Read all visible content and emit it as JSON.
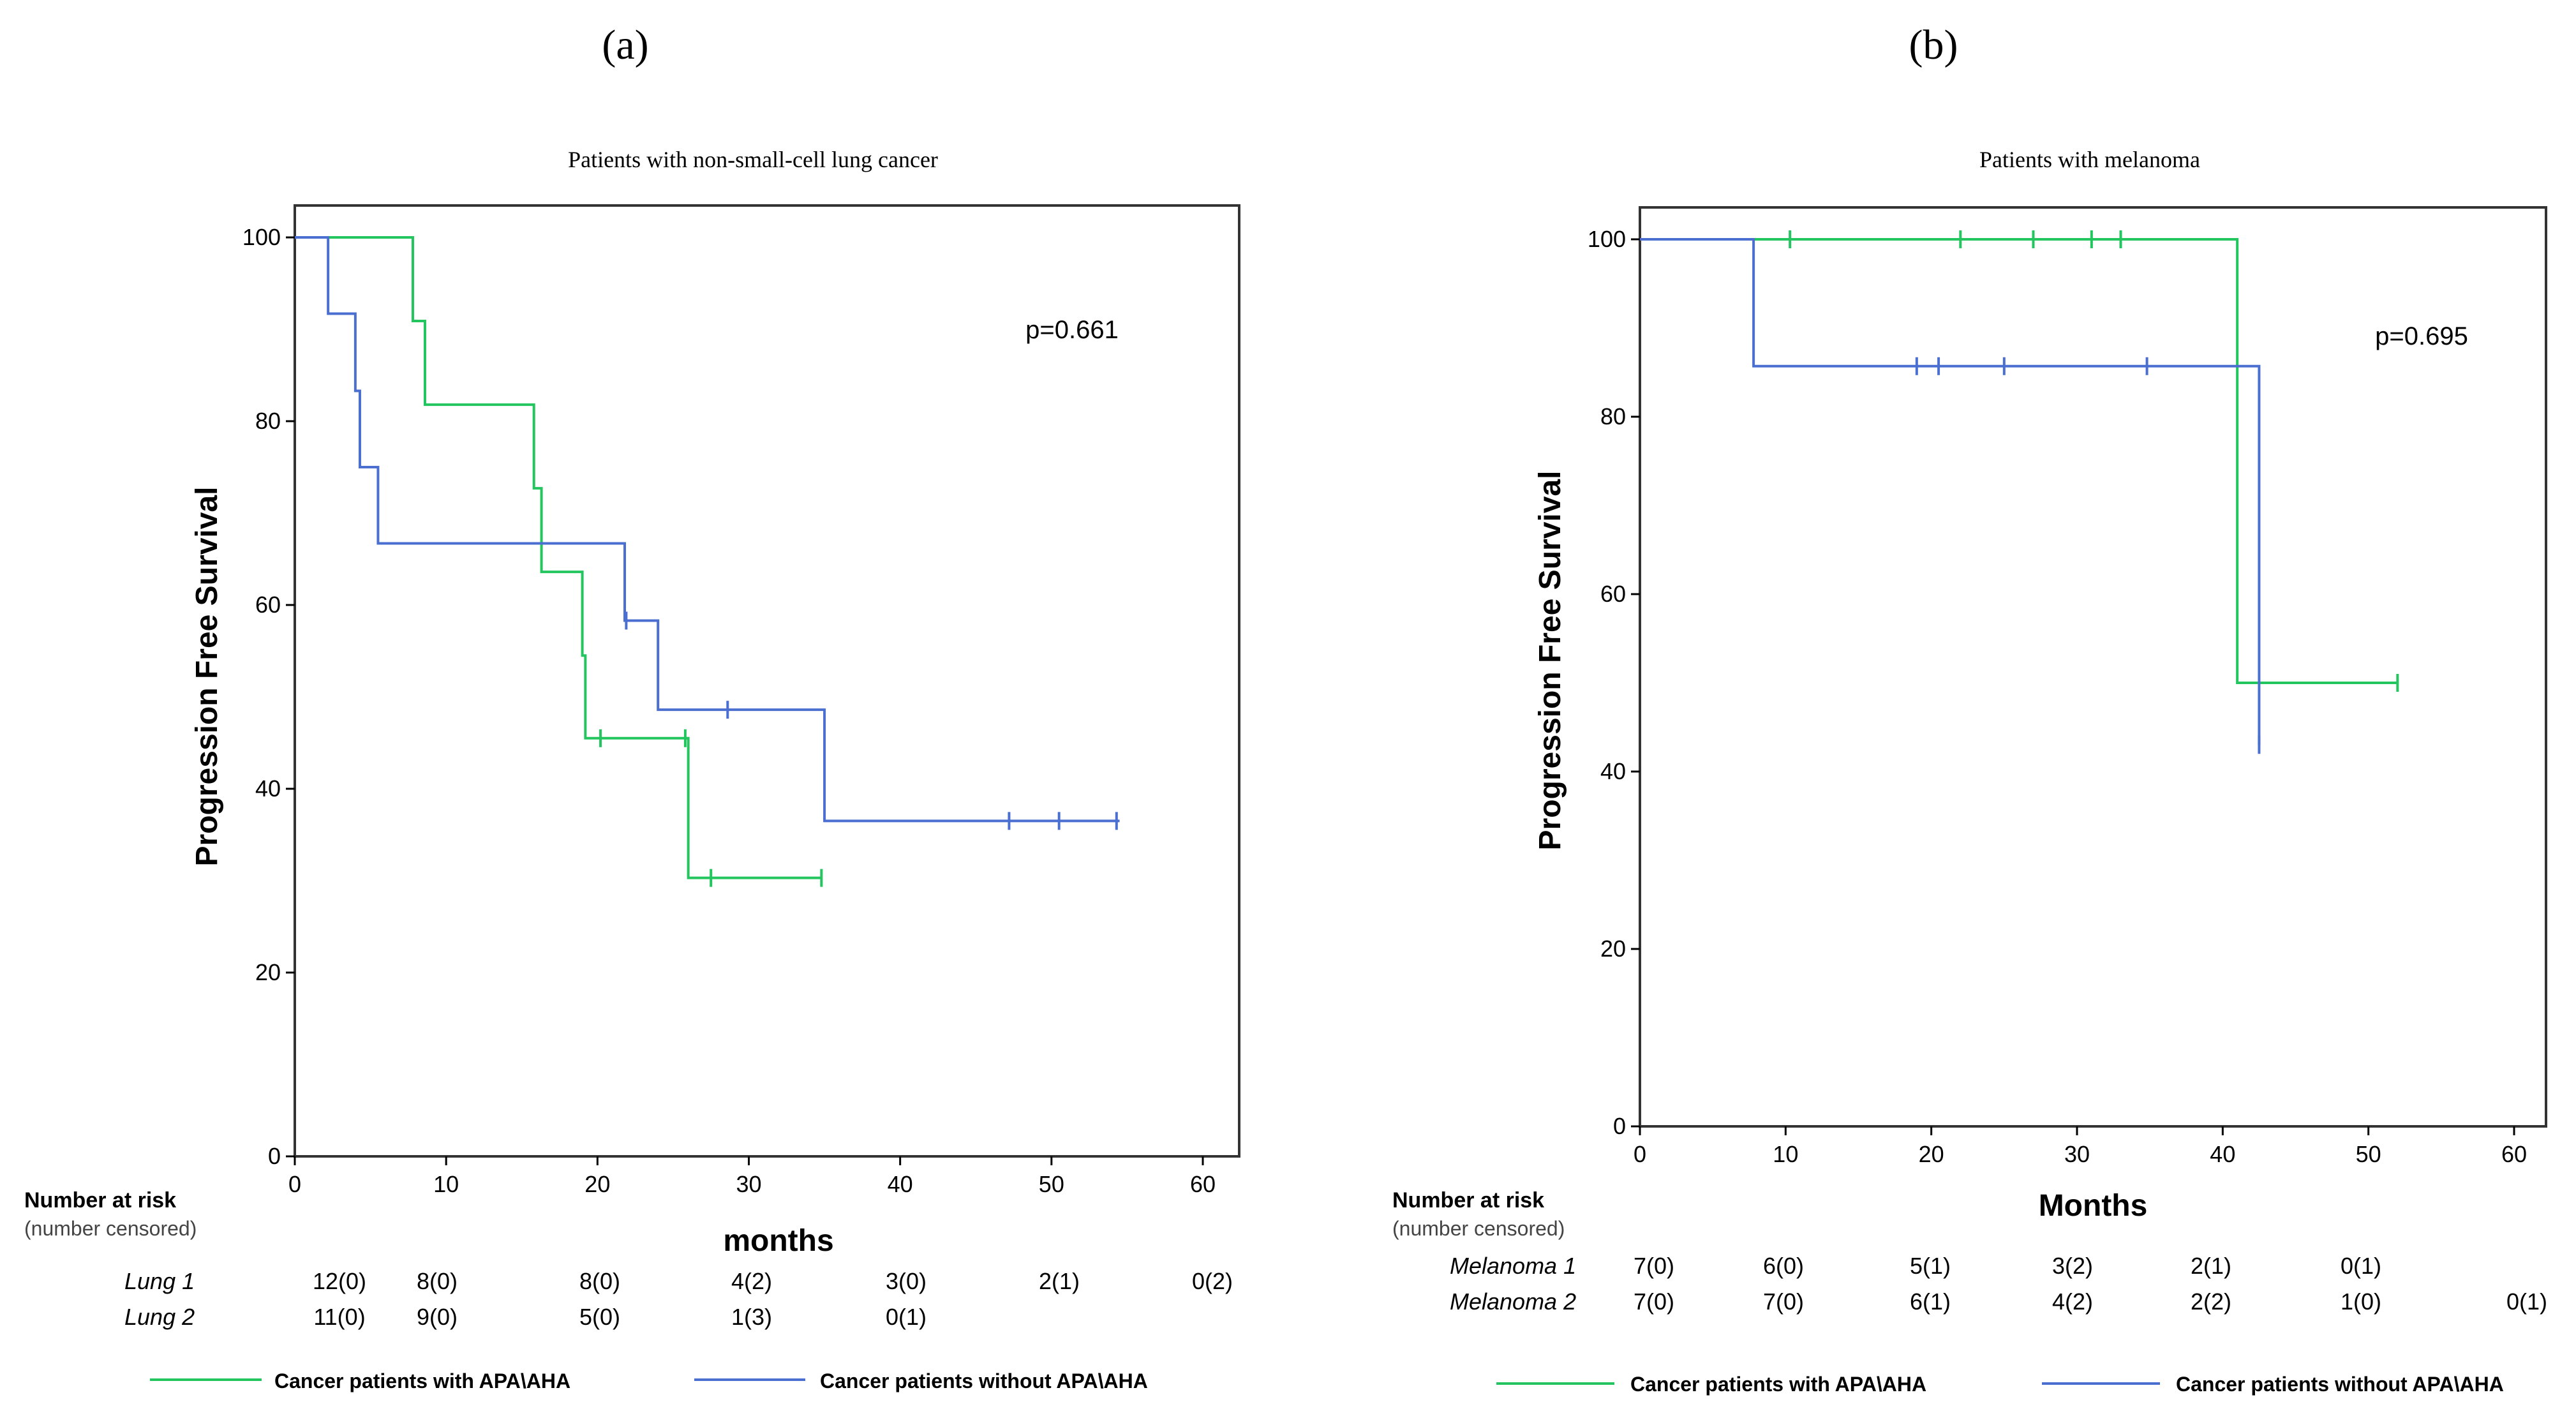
{
  "colors": {
    "green": "#22c55e",
    "blue": "#4a6fd0",
    "axis": "#000000",
    "frame": "#333333"
  },
  "chart_data": [
    {
      "type": "line",
      "panel_label": "(a)",
      "title": "Patients with non-small-cell lung  cancer",
      "xlabel": "months",
      "ylabel": "Progression Free Survival",
      "xlim": [
        0,
        62
      ],
      "ylim": [
        0,
        103
      ],
      "x_ticks": [
        "0",
        "10",
        "20",
        "30",
        "40",
        "50",
        "60"
      ],
      "y_ticks": [
        "0",
        "20",
        "40",
        "60",
        "80",
        "100"
      ],
      "annotation": "p=0.661",
      "series": [
        {
          "name": "Cancer patients with APA\\AHA",
          "color": "green",
          "points": [
            [
              0,
              100
            ],
            [
              7.8,
              100
            ],
            [
              7.8,
              90.9
            ],
            [
              8.6,
              90.9
            ],
            [
              8.6,
              81.8
            ],
            [
              15.8,
              81.8
            ],
            [
              15.8,
              72.7
            ],
            [
              16.3,
              72.7
            ],
            [
              16.3,
              63.6
            ],
            [
              19,
              63.6
            ],
            [
              19,
              54.5
            ],
            [
              19.2,
              54.5
            ],
            [
              19.2,
              45.5
            ],
            [
              26,
              45.5
            ],
            [
              26,
              30.3
            ],
            [
              34.8,
              30.3
            ]
          ],
          "censored": [
            [
              20.2,
              45.5
            ],
            [
              25.8,
              45.5
            ],
            [
              27.5,
              30.3
            ],
            [
              34.8,
              30.3
            ]
          ]
        },
        {
          "name": "Cancer patients without APA\\AHA",
          "color": "blue",
          "points": [
            [
              0,
              100
            ],
            [
              2.2,
              100
            ],
            [
              2.2,
              91.7
            ],
            [
              4,
              91.7
            ],
            [
              4,
              83.3
            ],
            [
              4.3,
              83.3
            ],
            [
              4.3,
              75
            ],
            [
              5.5,
              75
            ],
            [
              5.5,
              66.7
            ],
            [
              21.8,
              66.7
            ],
            [
              21.8,
              58.3
            ],
            [
              24,
              58.3
            ],
            [
              24,
              48.6
            ],
            [
              35,
              48.6
            ],
            [
              35,
              36.5
            ],
            [
              54.5,
              36.5
            ]
          ],
          "censored": [
            [
              21.9,
              58.3
            ],
            [
              28.6,
              48.6
            ],
            [
              47.2,
              36.5
            ],
            [
              50.5,
              36.5
            ],
            [
              54.3,
              36.5
            ]
          ]
        }
      ],
      "risk_table": {
        "header": "Number at risk",
        "subheader": "(number censored)",
        "rows": [
          {
            "label": "Lung 1",
            "values": [
              "12(0)",
              "8(0)",
              "8(0)",
              "4(2)",
              "3(0)",
              "2(1)",
              "0(2)"
            ]
          },
          {
            "label": "Lung 2",
            "values": [
              "11(0)",
              "9(0)",
              "5(0)",
              "1(3)",
              "0(1)"
            ]
          }
        ]
      },
      "legend": [
        "Cancer patients with APA\\AHA",
        "Cancer patients without APA\\AHA"
      ]
    },
    {
      "type": "line",
      "panel_label": "(b)",
      "title": "Patients with melanoma",
      "xlabel": "Months",
      "ylabel": "Progression Free Survival",
      "xlim": [
        0,
        62
      ],
      "ylim": [
        0,
        103
      ],
      "x_ticks": [
        "0",
        "10",
        "20",
        "30",
        "40",
        "50",
        "60"
      ],
      "y_ticks": [
        "0",
        "20",
        "40",
        "60",
        "80",
        "100"
      ],
      "annotation": "p=0.695",
      "series": [
        {
          "name": "Cancer patients with APA\\AHA",
          "color": "green",
          "points": [
            [
              0,
              100
            ],
            [
              41,
              100
            ],
            [
              41,
              50
            ],
            [
              52,
              50
            ]
          ],
          "censored": [
            [
              10.3,
              100
            ],
            [
              22,
              100
            ],
            [
              27,
              100
            ],
            [
              31,
              100
            ],
            [
              33,
              100
            ],
            [
              52,
              50
            ]
          ]
        },
        {
          "name": "Cancer patients without APA\\AHA",
          "color": "blue",
          "points": [
            [
              0,
              100
            ],
            [
              7.8,
              100
            ],
            [
              7.8,
              85.7
            ],
            [
              42.5,
              85.7
            ],
            [
              42.5,
              43
            ]
          ],
          "censored": [
            [
              19,
              85.7
            ],
            [
              20.5,
              85.7
            ],
            [
              25,
              85.7
            ],
            [
              34.8,
              85.7
            ],
            [
              42.5,
              43
            ]
          ]
        }
      ],
      "risk_table": {
        "header": "Number at risk",
        "subheader": "(number censored)",
        "rows": [
          {
            "label": "Melanoma 1",
            "values": [
              "7(0)",
              "6(0)",
              "5(1)",
              "3(2)",
              "2(1)",
              "0(1)"
            ]
          },
          {
            "label": "Melanoma 2",
            "values": [
              "7(0)",
              "7(0)",
              "6(1)",
              "4(2)",
              "2(2)",
              "1(0)",
              "0(1)"
            ]
          }
        ]
      },
      "legend": [
        "Cancer patients with APA\\AHA",
        "Cancer patients without APA\\AHA"
      ]
    }
  ]
}
